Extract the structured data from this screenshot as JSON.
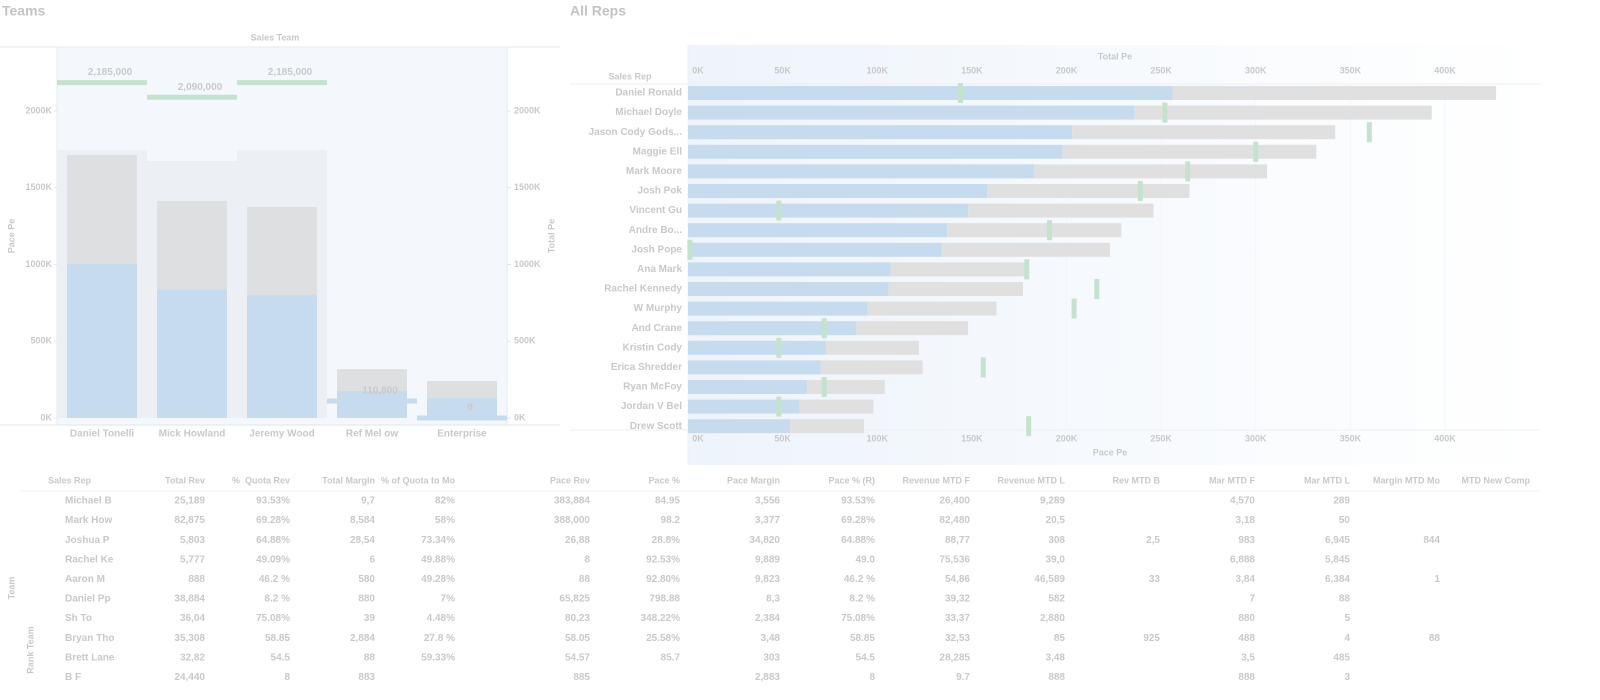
{
  "teams": {
    "title": "Teams",
    "chart_title": "Sales Team",
    "y_label": "Pace Pe",
    "y2_label": "Total Pe",
    "categories": [
      "Daniel Tonelli",
      "Mick Howland",
      "Jeremy Wood",
      "Ref   Mel ow",
      "Enterprise"
    ],
    "ylim": [
      0,
      2000
    ],
    "yticks": [
      {
        "value": 0,
        "label": "0K"
      },
      {
        "value": 500,
        "label": "500K"
      },
      {
        "value": 1000,
        "label": "1000K"
      },
      {
        "value": 1500,
        "label": "1500K"
      },
      {
        "value": 2000,
        "label": "2000K"
      }
    ],
    "y2lim": [
      0,
      2000
    ],
    "y2ticks": [
      {
        "value": 0,
        "label": "0K"
      },
      {
        "value": 500,
        "label": "500K"
      },
      {
        "value": 1000,
        "label": "1000K"
      },
      {
        "value": 1500,
        "label": "1500K"
      },
      {
        "value": 2000,
        "label": "2000K"
      }
    ],
    "background": {
      "color": "#eceff4",
      "values": [
        1746,
        1674,
        1746,
        null,
        null
      ]
    },
    "series": [
      {
        "name": "Revenue",
        "color": "#c6dbee",
        "values": [
          1003,
          834,
          801,
          176,
          130
        ]
      },
      {
        "name": "Remaining",
        "color": "#dedfe0",
        "values": [
          710,
          580,
          574,
          143,
          111
        ]
      }
    ],
    "targets": {
      "values": [
        2185,
        2090,
        2185,
        110.8,
        0
      ],
      "value_labels": [
        "2,185,000",
        "2,090,000",
        "2,185,000",
        "110,800",
        "0"
      ],
      "colors": [
        "#c5e2cf",
        "#c5e2cf",
        "#c5e2cf",
        "#c6dbee",
        "#c6dbee"
      ]
    }
  },
  "reps": {
    "title": "All Reps",
    "column_label": "Sales Rep",
    "top_axis_label": "Total Pe",
    "bottom_axis_label": "Pace Pe",
    "xlim": [
      0,
      400
    ],
    "xticks": [
      {
        "value": 0,
        "label": "0K"
      },
      {
        "value": 50,
        "label": "50K"
      },
      {
        "value": 100,
        "label": "100K"
      },
      {
        "value": 150,
        "label": "150K"
      },
      {
        "value": 200,
        "label": "200K"
      },
      {
        "value": 250,
        "label": "250K"
      },
      {
        "value": 300,
        "label": "300K"
      },
      {
        "value": 350,
        "label": "350K"
      },
      {
        "value": 400,
        "label": "400K"
      }
    ],
    "categories": [
      "Daniel Ronald",
      "Michael Doyle",
      "Jason Cody Gods...",
      "Maggie Ell",
      "Mark Moore",
      "Josh Pok",
      "Vincent Gu",
      "Andre Bo...",
      "Josh Pope",
      "Ana Mark",
      "Rachel Kennedy",
      "W Murphy",
      "And Crane",
      "Kristin Cody",
      "Erica Shredder",
      "Ryan McFoy",
      "Jordan V Bel",
      "Drew Scott"
    ],
    "series": [
      {
        "name": "Revenue",
        "color": "#c6dbee",
        "values": [
          256,
          236,
          203,
          198,
          183,
          158,
          148,
          137,
          134,
          107,
          106,
          95,
          89,
          73,
          70,
          63,
          59,
          54
        ]
      },
      {
        "name": "Remaining",
        "color": "#e0e0e0",
        "values": [
          171,
          157,
          139,
          134,
          123,
          107,
          98,
          92,
          89,
          73,
          71,
          68,
          59,
          49,
          54,
          41,
          39,
          39
        ]
      }
    ],
    "targets": {
      "color": "#c5e2cf",
      "values": [
        144,
        252,
        360,
        300,
        264,
        239,
        48,
        191,
        1,
        179,
        216,
        204,
        72,
        48,
        156,
        72,
        48,
        180
      ]
    }
  },
  "table": {
    "side_labels": [
      "Team",
      "Rank Team"
    ],
    "columns": [
      "Sales Rep",
      "Total Rev",
      "%",
      "Quota Rev",
      "Total Margin",
      "% of Quota to Mo",
      "Pace Rev",
      "Pace %",
      "Pace Margin",
      "Pace % (R)",
      "Revenue MTD F",
      "Revenue MTD L",
      "Rev MTD B",
      "Mar MTD F",
      "Mar MTD L",
      "Margin MTD Mo",
      "MTD New Comp"
    ],
    "rows": [
      [
        "Michael B",
        "25,189",
        null,
        "93.53%",
        "9,7",
        "82%",
        "383,884",
        "84.95",
        "3,556",
        "93.53%",
        "26,400",
        "9,289",
        null,
        "4,570",
        "289",
        null,
        null
      ],
      [
        "Mark How",
        "82,875",
        null,
        "69.28%",
        "8,584",
        "58%",
        "388,000",
        "98.2",
        "3,377",
        "69.28%",
        "82,480",
        "20,5",
        null,
        "3,18",
        "50",
        null,
        null
      ],
      [
        "Joshua P",
        "5,803",
        null,
        "64.88%",
        "28,54",
        "73.34%",
        "26,88",
        "28.8%",
        "34,820",
        "64.88%",
        "88,77",
        "308",
        "2,5",
        "983",
        "6,945",
        "844",
        null
      ],
      [
        "Rachel Ke",
        "5,777",
        null,
        "49.09%",
        "6",
        "49.88%",
        "8",
        "92.53%",
        "9,889",
        "49.0",
        "75,536",
        "39,0",
        null,
        "6,888",
        "5,845",
        null,
        null
      ],
      [
        "Aaron M",
        "888",
        null,
        "46.2 %",
        "580",
        "49.28%",
        "88",
        "92.80%",
        "9,823",
        "46.2 %",
        "54,86",
        "46,589",
        "33",
        "3,84",
        "6,384",
        "1",
        null
      ],
      [
        "Daniel Pp",
        "38,884",
        null,
        "8.2 %",
        "880",
        "7%",
        "65,825",
        "798.88",
        "8,3",
        "8.2 %",
        "39,32",
        "582",
        null,
        "7",
        "88",
        null,
        null
      ],
      [
        "Sh To",
        "36,04",
        null,
        "75.08%",
        "39",
        "4.48%",
        "80,23",
        "348.22%",
        "2,384",
        "75.08%",
        "33,37",
        "2,880",
        null,
        "880",
        "5",
        null,
        null
      ],
      [
        "Bryan Tho",
        "35,308",
        null,
        "58.85",
        "2,884",
        "27.8 %",
        "58.05",
        "25.58%",
        "3,48",
        "58.85",
        "32,53",
        "85",
        "925",
        "488",
        "4",
        "88",
        null
      ],
      [
        "Brett Lane",
        "32,82",
        null,
        "54.5",
        "88",
        "59.33%",
        "54.57",
        "85.7",
        "303",
        "54.5",
        "28,285",
        "3,48",
        null,
        "3,5",
        "485",
        null,
        null
      ],
      [
        "B F",
        "24,440",
        null,
        "8",
        "883",
        null,
        "885",
        null,
        "2,883",
        "8",
        "9.7",
        "888",
        null,
        "888",
        "3",
        null,
        null
      ]
    ]
  }
}
